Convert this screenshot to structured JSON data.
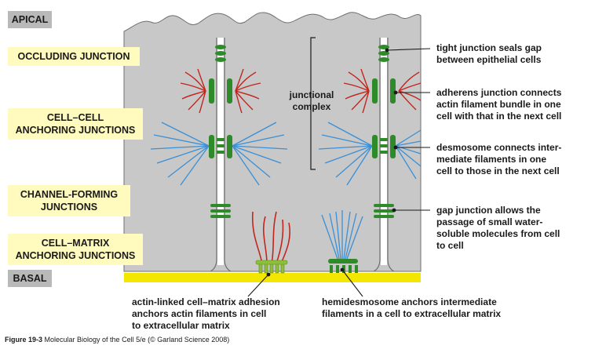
{
  "regions": {
    "apical": "APICAL",
    "basal": "BASAL"
  },
  "left_labels": [
    {
      "text": "OCCLUDING JUNCTION"
    },
    {
      "text": "CELL–CELL\nANCHORING JUNCTIONS"
    },
    {
      "text": "CHANNEL-FORMING\nJUNCTIONS"
    },
    {
      "text": "CELL–MATRIX\nANCHORING JUNCTIONS"
    }
  ],
  "center_label": "junctional\ncomplex",
  "right_annotations": [
    {
      "text": "tight junction seals gap\nbetween epithelial cells"
    },
    {
      "text": "adherens junction connects\nactin filament bundle in one\ncell with that in the next cell"
    },
    {
      "text": "desmosome connects inter-\nmediate filaments in one\ncell to those in the next cell"
    },
    {
      "text": "gap junction allows the\npassage of small water-\nsoluble molecules from cell\nto cell"
    }
  ],
  "bottom_annotations": [
    {
      "text": "actin-linked cell–matrix adhesion\nanchors actin filaments in cell\nto extracellular matrix"
    },
    {
      "text": "hemidesmosome anchors intermediate\nfilaments in a cell to extracellular matrix"
    }
  ],
  "caption": {
    "figure": "Figure 19-3",
    "text": " Molecular Biology of the Cell 5/e (© Garland Science 2008)"
  },
  "colors": {
    "cell": "#c8c8c8",
    "membrane": "#6f6f6f",
    "label_bg": "#fffbbf",
    "leader": "#f6ef7c",
    "matrix": "#f3e600",
    "junction_green": "#2f8a2a",
    "actin_red": "#c0261e",
    "intermediate_blue": "#3a8fd6",
    "grey_tag": "#b9b9b9"
  }
}
